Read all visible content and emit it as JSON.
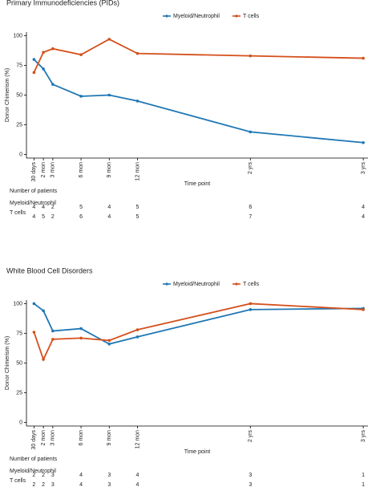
{
  "chart_data": [
    {
      "type": "line",
      "title": "Primary Immunodeficiencies (PIDs)",
      "x_label": "Time point",
      "y_label": "Donor Chimerism (%)",
      "x": [
        1,
        2,
        3,
        6,
        9,
        12,
        24,
        36
      ],
      "xticks": [
        {
          "value": 1,
          "label": "30 days"
        },
        {
          "value": 2,
          "label": "2 mon"
        },
        {
          "value": 3,
          "label": "3 mon"
        },
        {
          "value": 6,
          "label": "6 mon"
        },
        {
          "value": 9,
          "label": "9 mon"
        },
        {
          "value": 12,
          "label": "12 mon"
        },
        {
          "value": 24,
          "label": "2 yrs"
        },
        {
          "value": 36,
          "label": "3 yrs"
        }
      ],
      "xlim": [
        0.2,
        36.5
      ],
      "ylim": [
        -3,
        103
      ],
      "yticks": [
        0,
        25,
        50,
        75,
        100
      ],
      "series": [
        {
          "name": "Myeloid/Neutrophil",
          "color": "#1f77b4",
          "values": [
            80,
            72,
            59,
            49,
            50,
            45,
            19,
            10
          ]
        },
        {
          "name": "T cells",
          "color": "#d4501c",
          "values": [
            69,
            86,
            89,
            84,
            97,
            85,
            83,
            81
          ]
        }
      ],
      "patient_table": {
        "title": "Number of patients",
        "rows": [
          {
            "label": "Myeloid/Neutrophil",
            "values": [
              4,
              4,
              2,
              5,
              4,
              5,
              6,
              4
            ]
          },
          {
            "label": "T cells",
            "values": [
              4,
              5,
              2,
              6,
              4,
              5,
              7,
              4
            ]
          }
        ]
      }
    },
    {
      "type": "line",
      "title": "White Blood Cell Disorders",
      "x_label": "Time point",
      "y_label": "Donor Chimerism (%)",
      "x": [
        1,
        2,
        3,
        6,
        9,
        12,
        24,
        36
      ],
      "xticks": [
        {
          "value": 1,
          "label": "30 days"
        },
        {
          "value": 2,
          "label": "2 mon"
        },
        {
          "value": 3,
          "label": "3 mon"
        },
        {
          "value": 6,
          "label": "6 mon"
        },
        {
          "value": 9,
          "label": "9 mon"
        },
        {
          "value": 12,
          "label": "12 mon"
        },
        {
          "value": 24,
          "label": "2 yrs"
        },
        {
          "value": 36,
          "label": "3 yrs"
        }
      ],
      "xlim": [
        0.2,
        36.5
      ],
      "ylim": [
        -3,
        103
      ],
      "yticks": [
        0,
        25,
        50,
        75,
        100
      ],
      "series": [
        {
          "name": "Myeloid/Neutrophil",
          "color": "#1f77b4",
          "values": [
            100,
            94,
            77,
            79,
            66,
            72,
            95,
            96
          ]
        },
        {
          "name": "T cells",
          "color": "#d4501c",
          "values": [
            76,
            53,
            70,
            71,
            69,
            78,
            100,
            95
          ]
        }
      ],
      "patient_table": {
        "title": "Number of patients",
        "rows": [
          {
            "label": "Myeloid/Neutrophil",
            "values": [
              2,
              2,
              3,
              4,
              3,
              4,
              3,
              1
            ]
          },
          {
            "label": "T cells",
            "values": [
              2,
              2,
              3,
              4,
              3,
              4,
              3,
              1
            ]
          }
        ]
      }
    }
  ]
}
